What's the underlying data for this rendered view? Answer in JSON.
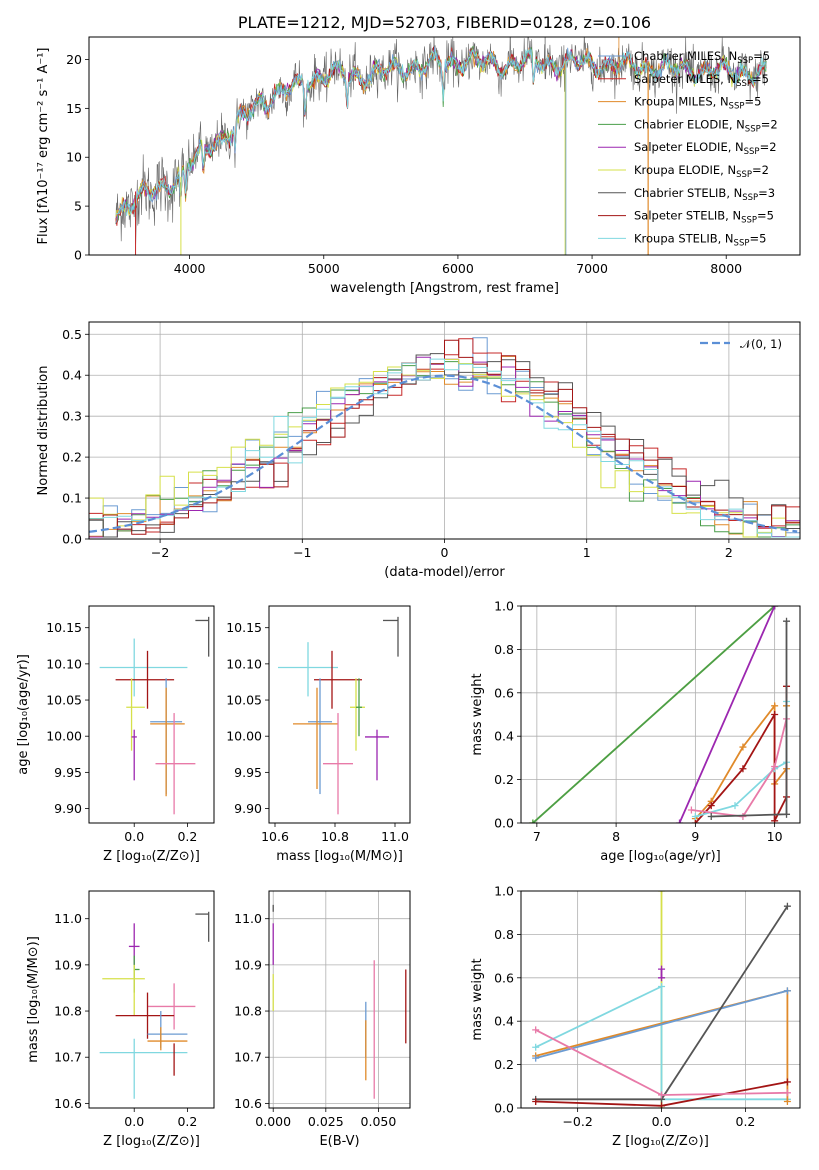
{
  "figure": {
    "title": "PLATE=1212, MJD=52703, FIBERID=0128, z=0.106"
  },
  "colors": {
    "Chabrier MILES": "#6b9bd2",
    "Salpeter MILES": "#c62828",
    "Kroupa MILES": "#e08a2a",
    "Chabrier ELODIE": "#4a9e4a",
    "Salpeter ELODIE": "#9c27b0",
    "Kroupa ELODIE": "#d6e04a",
    "Chabrier STELIB": "#555555",
    "Salpeter STELIB": "#a31515",
    "Kroupa STELIB": "#80d8e0",
    "pink": "#e87aa8",
    "normal": "#5b8fd6"
  },
  "chart_data": [
    {
      "id": "spectrum",
      "type": "line",
      "title": "PLATE=1212, MJD=52703, FIBERID=0128, z=0.106",
      "xlabel": "wavelength [Angstrom, rest frame]",
      "ylabel": "Flux [fλ10⁻¹⁷ erg cm⁻² s⁻¹ A⁻¹]",
      "xlim": [
        3250,
        8550
      ],
      "ylim": [
        0,
        22.3
      ],
      "xticks": [
        "4000",
        "5000",
        "6000",
        "7000",
        "8000"
      ],
      "yticks": [
        "0",
        "5",
        "10",
        "15",
        "20"
      ],
      "grid": false,
      "legend_position": "top-right",
      "legend": [
        "Chabrier MILES, N_SSP=5",
        "Salpeter MILES, N_SSP=5",
        "Kroupa MILES, N_SSP=5",
        "Chabrier ELODIE, N_SSP=2",
        "Salpeter ELODIE, N_SSP=2",
        "Kroupa ELODIE, N_SSP=2",
        "Chabrier STELIB, N_SSP=3",
        "Salpeter STELIB, N_SSP=5",
        "Kroupa STELIB, N_SSP=5"
      ],
      "continuum": {
        "x": [
          3450,
          3600,
          3800,
          3950,
          4100,
          4300,
          4500,
          4700,
          4900,
          5100,
          5300,
          5500,
          5700,
          5900,
          6100,
          6300,
          6500,
          6700,
          6900,
          7100,
          7300,
          7500,
          7700,
          7900,
          8100,
          8300
        ],
        "y": [
          4.4,
          5.6,
          7.0,
          8.3,
          10.8,
          12.5,
          15.6,
          16.6,
          18.0,
          18.6,
          18.3,
          18.9,
          19.3,
          19.6,
          19.9,
          19.4,
          19.8,
          19.6,
          19.7,
          19.5,
          19.3,
          19.2,
          19.0,
          18.8,
          18.7,
          18.5
        ]
      }
    },
    {
      "id": "residuals",
      "type": "histogram",
      "xlabel": "(data-model)/error",
      "ylabel": "Normed distribution",
      "xlim": [
        -2.5,
        2.5
      ],
      "ylim": [
        0,
        0.53
      ],
      "xticks": [
        "−2",
        "−1",
        "0",
        "1",
        "2"
      ],
      "yticks": [
        "0.0",
        "0.1",
        "0.2",
        "0.3",
        "0.4",
        "0.5"
      ],
      "grid": true,
      "legend": [
        "𝒩(0, 1)"
      ],
      "legend_position": "top-right",
      "bin_width": 0.1
    },
    {
      "id": "age-vs-Z",
      "type": "errorbar",
      "xlabel": "Z [log₁₀(Z/Z⊙)]",
      "ylabel": "age  [log₁₀(age/yr)]",
      "xlim": [
        -0.17,
        0.3
      ],
      "ylim": [
        9.88,
        10.18
      ],
      "xticks": [
        "0.0",
        "0.2"
      ],
      "yticks": [
        "9.90",
        "9.95",
        "10.00",
        "10.05",
        "10.10",
        "10.15"
      ],
      "grid": false,
      "points": [
        {
          "c": "Kroupa STELIB",
          "x": 0.0,
          "y": 10.095,
          "xerr": [
            0.13,
            0.2
          ],
          "yerr": [
            0.04,
            0.04
          ]
        },
        {
          "c": "Salpeter STELIB",
          "x": 0.05,
          "y": 10.078,
          "xerr": [
            0.12,
            0.1
          ],
          "yerr": [
            0.04,
            0.04
          ]
        },
        {
          "c": "Kroupa ELODIE",
          "x": -0.01,
          "y": 10.04,
          "xerr": [
            0.02,
            0.05
          ],
          "yerr": [
            0.06,
            0.04
          ]
        },
        {
          "c": "Chabrier MILES",
          "x": 0.12,
          "y": 10.02,
          "xerr": [
            0.06,
            0.06
          ],
          "yerr": [
            0.1,
            0.06
          ]
        },
        {
          "c": "Kroupa MILES",
          "x": 0.12,
          "y": 10.017,
          "xerr": [
            0.06,
            0.07
          ],
          "yerr": [
            0.1,
            0.05
          ]
        },
        {
          "c": "Salpeter ELODIE",
          "x": 0.0,
          "y": 9.999,
          "xerr": [
            0.01,
            0.01
          ],
          "yerr": [
            0.06,
            0.01
          ]
        },
        {
          "c": "pink",
          "x": 0.15,
          "y": 9.962,
          "xerr": [
            0.07,
            0.08
          ],
          "yerr": [
            0.07,
            0.07
          ]
        },
        {
          "c": "Chabrier STELIB",
          "x": 0.28,
          "y": 10.16,
          "xerr": [
            0.05,
            0.0
          ],
          "yerr": [
            0.05,
            0.005
          ]
        }
      ]
    },
    {
      "id": "age-vs-mass",
      "type": "errorbar",
      "xlabel": "mass [log₁₀(M/M⊙)]",
      "ylabel": "",
      "xlim": [
        10.58,
        11.05
      ],
      "ylim": [
        9.88,
        10.18
      ],
      "xticks": [
        "10.6",
        "10.8",
        "11.0"
      ],
      "yticks": [
        "9.90",
        "9.95",
        "10.00",
        "10.05",
        "10.10",
        "10.15"
      ],
      "grid": false,
      "points": [
        {
          "c": "Kroupa STELIB",
          "x": 10.71,
          "y": 10.095,
          "xerr": [
            0.1,
            0.1
          ],
          "yerr": [
            0.04,
            0.035
          ]
        },
        {
          "c": "Salpeter STELIB",
          "x": 10.79,
          "y": 10.078,
          "xerr": [
            0.06,
            0.1
          ],
          "yerr": [
            0.04,
            0.04
          ]
        },
        {
          "c": "Kroupa ELODIE",
          "x": 10.87,
          "y": 10.04,
          "xerr": [
            0.02,
            0.03
          ],
          "yerr": [
            0.06,
            0.04
          ]
        },
        {
          "c": "Chabrier MILES",
          "x": 10.75,
          "y": 10.02,
          "xerr": [
            0.04,
            0.04
          ],
          "yerr": [
            0.1,
            0.06
          ]
        },
        {
          "c": "Kroupa MILES",
          "x": 10.74,
          "y": 10.017,
          "xerr": [
            0.08,
            0.07
          ],
          "yerr": [
            0.09,
            0.05
          ]
        },
        {
          "c": "Salpeter ELODIE",
          "x": 10.94,
          "y": 9.999,
          "xerr": [
            0.04,
            0.04
          ],
          "yerr": [
            0.06,
            0.01
          ]
        },
        {
          "c": "pink",
          "x": 10.81,
          "y": 9.962,
          "xerr": [
            0.05,
            0.05
          ],
          "yerr": [
            0.07,
            0.07
          ]
        },
        {
          "c": "Chabrier ELODIE",
          "x": 10.88,
          "y": 10.04,
          "xerr": [
            0.01,
            0.01
          ],
          "yerr": [
            0.04,
            0.04
          ]
        },
        {
          "c": "Chabrier STELIB",
          "x": 11.01,
          "y": 10.16,
          "xerr": [
            0.05,
            0.0
          ],
          "yerr": [
            0.05,
            0.005
          ]
        }
      ]
    },
    {
      "id": "mass-weight-vs-age",
      "type": "line",
      "xlabel": "age  [log₁₀(age/yr)]",
      "ylabel": "mass weight",
      "xlim": [
        6.8,
        10.32
      ],
      "ylim": [
        0,
        1.0
      ],
      "xticks": [
        "7",
        "8",
        "9",
        "10"
      ],
      "yticks": [
        "0.0",
        "0.2",
        "0.4",
        "0.6",
        "0.8",
        "1.0"
      ],
      "grid": true,
      "series": [
        {
          "c": "Kroupa ELODIE",
          "x": [
            6.95,
            10.0
          ],
          "y": [
            0.0,
            1.0
          ]
        },
        {
          "c": "Chabrier ELODIE",
          "x": [
            6.95,
            10.0
          ],
          "y": [
            0.0,
            1.0
          ]
        },
        {
          "c": "Salpeter ELODIE",
          "x": [
            8.8,
            10.0
          ],
          "y": [
            0.0,
            1.0
          ]
        },
        {
          "c": "Kroupa MILES",
          "x": [
            9.0,
            9.2,
            9.6,
            10.0,
            10.0,
            10.15,
            10.15
          ],
          "y": [
            0.02,
            0.1,
            0.35,
            0.54,
            0.18,
            0.25,
            0.54
          ]
        },
        {
          "c": "Salpeter STELIB",
          "x": [
            9.0,
            9.2,
            9.6,
            10.0,
            10.0,
            10.15,
            10.15
          ],
          "y": [
            0.0,
            0.08,
            0.25,
            0.5,
            0.01,
            0.12,
            0.63
          ]
        },
        {
          "c": "Kroupa STELIB",
          "x": [
            9.0,
            9.5,
            10.0,
            10.15,
            10.15
          ],
          "y": [
            0.03,
            0.08,
            0.25,
            0.28,
            0.56
          ]
        },
        {
          "c": "pink",
          "x": [
            8.95,
            9.6,
            10.0,
            10.15
          ],
          "y": [
            0.06,
            0.03,
            0.26,
            0.48
          ]
        },
        {
          "c": "Chabrier STELIB",
          "x": [
            9.2,
            10.15,
            10.15
          ],
          "y": [
            0.03,
            0.04,
            0.93
          ]
        }
      ]
    },
    {
      "id": "mass-vs-Z",
      "type": "errorbar",
      "xlabel": "Z [log₁₀(Z/Z⊙)]",
      "ylabel": "mass [log₁₀(M/M⊙)]",
      "xlim": [
        -0.17,
        0.3
      ],
      "ylim": [
        10.59,
        11.06
      ],
      "xticks": [
        "0.0",
        "0.2"
      ],
      "yticks": [
        "10.6",
        "10.7",
        "10.8",
        "10.9",
        "11.0"
      ],
      "grid": false,
      "points": [
        {
          "c": "Salpeter ELODIE",
          "x": 0.0,
          "y": 10.94,
          "xerr": [
            0.02,
            0.02
          ],
          "yerr": [
            0.04,
            0.05
          ]
        },
        {
          "c": "Chabrier ELODIE",
          "x": 0.0,
          "y": 10.89,
          "xerr": [
            0.0,
            0.02
          ],
          "yerr": [
            0.05,
            0.03
          ]
        },
        {
          "c": "Kroupa ELODIE",
          "x": 0.0,
          "y": 10.87,
          "xerr": [
            0.12,
            0.04
          ],
          "yerr": [
            0.08,
            0.03
          ]
        },
        {
          "c": "pink",
          "x": 0.15,
          "y": 10.81,
          "xerr": [
            0.1,
            0.08
          ],
          "yerr": [
            0.05,
            0.05
          ]
        },
        {
          "c": "Salpeter STELIB",
          "x": 0.05,
          "y": 10.79,
          "xerr": [
            0.12,
            0.1
          ],
          "yerr": [
            0.05,
            0.05
          ]
        },
        {
          "c": "Chabrier MILES",
          "x": 0.1,
          "y": 10.75,
          "xerr": [
            0.05,
            0.1
          ],
          "yerr": [
            0.03,
            0.05
          ]
        },
        {
          "c": "Kroupa MILES",
          "x": 0.1,
          "y": 10.735,
          "xerr": [
            0.05,
            0.1
          ],
          "yerr": [
            0.02,
            0.03
          ]
        },
        {
          "c": "Kroupa STELIB",
          "x": 0.0,
          "y": 10.71,
          "xerr": [
            0.13,
            0.2
          ],
          "yerr": [
            0.1,
            0.03
          ]
        },
        {
          "c": "Salpeter STELIB",
          "x": 0.15,
          "y": 10.66,
          "xerr": [
            0.0,
            0.0
          ],
          "yerr": [
            0.0,
            0.07
          ]
        },
        {
          "c": "Chabrier STELIB",
          "x": 0.28,
          "y": 11.01,
          "xerr": [
            0.05,
            0.0
          ],
          "yerr": [
            0.06,
            0.005
          ]
        }
      ]
    },
    {
      "id": "mass-vs-ebv",
      "type": "errorbar",
      "xlabel": "E(B-V)",
      "ylabel": "",
      "xlim": [
        -0.002,
        0.065
      ],
      "ylim": [
        10.59,
        11.06
      ],
      "xticks": [
        "0.000",
        "0.025",
        "0.050"
      ],
      "yticks": [
        "10.6",
        "10.7",
        "10.8",
        "10.9",
        "11.0"
      ],
      "grid": true,
      "points": [
        {
          "c": "Chabrier STELIB",
          "x": 0.0,
          "y": 11.02,
          "xerr": [
            0.0,
            0.0
          ],
          "yerr": [
            0.005,
            0.01
          ]
        },
        {
          "c": "Salpeter ELODIE",
          "x": 0.0,
          "y": 10.94,
          "xerr": [
            0.0,
            0.0
          ],
          "yerr": [
            0.04,
            0.05
          ]
        },
        {
          "c": "Kroupa ELODIE",
          "x": 0.0,
          "y": 10.84,
          "xerr": [
            0.0,
            0.0
          ],
          "yerr": [
            0.04,
            0.04
          ]
        },
        {
          "c": "Chabrier MILES",
          "x": 0.044,
          "y": 10.75,
          "xerr": [
            0.0,
            0.0
          ],
          "yerr": [
            0.05,
            0.07
          ]
        },
        {
          "c": "Kroupa MILES",
          "x": 0.044,
          "y": 10.72,
          "xerr": [
            0.0,
            0.0
          ],
          "yerr": [
            0.07,
            0.06
          ]
        },
        {
          "c": "pink",
          "x": 0.048,
          "y": 10.81,
          "xerr": [
            0.0,
            0.0
          ],
          "yerr": [
            0.2,
            0.1
          ]
        },
        {
          "c": "Salpeter STELIB",
          "x": 0.063,
          "y": 10.81,
          "xerr": [
            0.0,
            0.0
          ],
          "yerr": [
            0.08,
            0.08
          ]
        }
      ]
    },
    {
      "id": "mass-weight-vs-Z",
      "type": "line",
      "xlabel": "Z [log₁₀(Z/Z⊙)]",
      "ylabel": "mass weight",
      "xlim": [
        -0.335,
        0.33
      ],
      "ylim": [
        0,
        1.0
      ],
      "xticks": [
        "−0.2",
        "0.0",
        "0.2"
      ],
      "yticks": [
        "0.0",
        "0.2",
        "0.4",
        "0.6",
        "0.8",
        "1.0"
      ],
      "grid": true,
      "series": [
        {
          "c": "Kroupa ELODIE",
          "x": [
            0.0,
            0.0
          ],
          "y": [
            0.0,
            1.0
          ]
        },
        {
          "c": "Salpeter ELODIE",
          "x": [
            0.0,
            0.0
          ],
          "y": [
            0.6,
            0.64
          ]
        },
        {
          "c": "Kroupa STELIB",
          "x": [
            -0.3,
            0.0,
            0.0,
            0.3
          ],
          "y": [
            0.28,
            0.56,
            0.04,
            0.04
          ]
        },
        {
          "c": "Kroupa MILES",
          "x": [
            -0.3,
            0.3,
            0.3
          ],
          "y": [
            0.24,
            0.54,
            0.03
          ]
        },
        {
          "c": "Chabrier MILES",
          "x": [
            -0.3,
            0.3
          ],
          "y": [
            0.23,
            0.54
          ]
        },
        {
          "c": "Chabrier STELIB",
          "x": [
            -0.3,
            0.0,
            0.3
          ],
          "y": [
            0.04,
            0.04,
            0.93
          ]
        },
        {
          "c": "Salpeter STELIB",
          "x": [
            -0.3,
            0.0,
            0.3
          ],
          "y": [
            0.03,
            0.01,
            0.12
          ]
        },
        {
          "c": "pink",
          "x": [
            -0.3,
            0.0,
            0.3
          ],
          "y": [
            0.36,
            0.06,
            0.07
          ]
        }
      ]
    }
  ]
}
